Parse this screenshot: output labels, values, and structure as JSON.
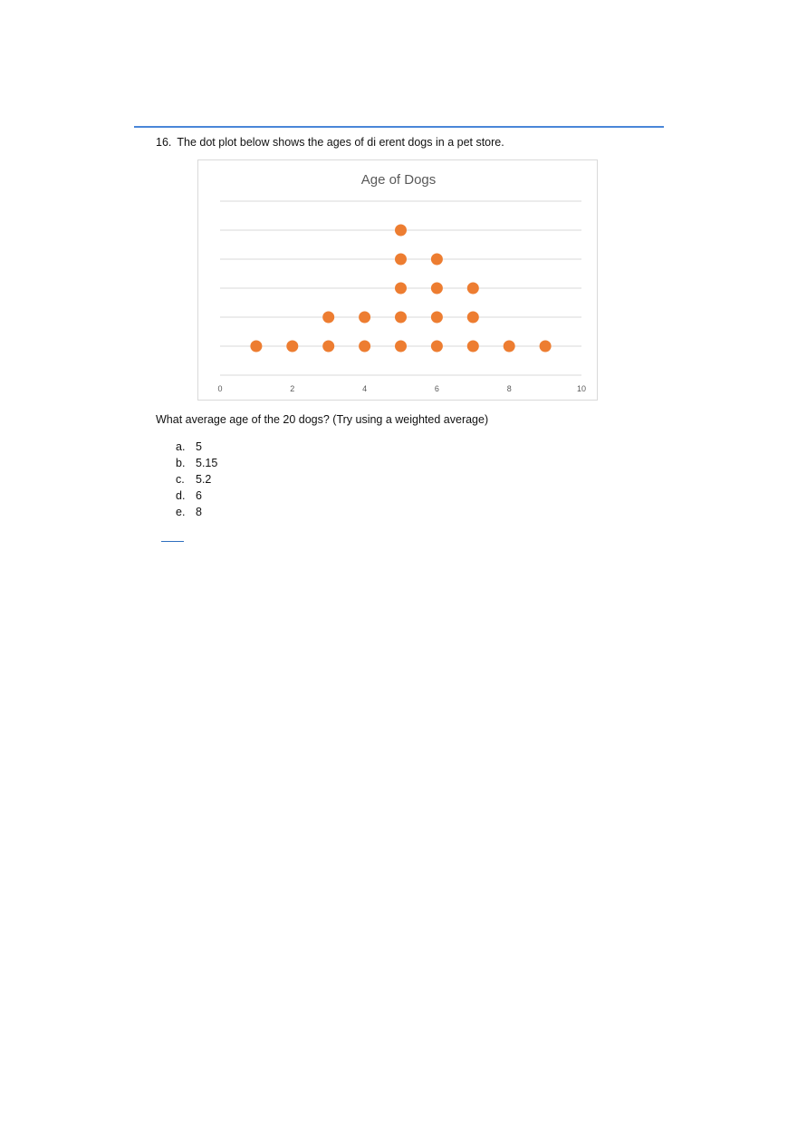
{
  "question": {
    "number": "16.",
    "text": "The dot plot below shows the ages of di erent dogs in a pet store."
  },
  "prompt": "What average age of the 20 dogs? (Try using a weighted average)",
  "choices": [
    {
      "letter": "a.",
      "value": "5"
    },
    {
      "letter": "b.",
      "value": "5.15"
    },
    {
      "letter": "c.",
      "value": "5.2"
    },
    {
      "letter": "d.",
      "value": "6"
    },
    {
      "letter": "e.",
      "value": "8"
    }
  ],
  "chart_data": {
    "type": "scatter",
    "title": "Age of Dogs",
    "xlabel": "",
    "ylabel": "",
    "xlim": [
      0,
      10
    ],
    "x_ticks": [
      "0",
      "2",
      "4",
      "6",
      "8",
      "10"
    ],
    "counts": [
      {
        "age": 1,
        "count": 1
      },
      {
        "age": 2,
        "count": 1
      },
      {
        "age": 3,
        "count": 2
      },
      {
        "age": 4,
        "count": 2
      },
      {
        "age": 5,
        "count": 5
      },
      {
        "age": 6,
        "count": 4
      },
      {
        "age": 7,
        "count": 3
      },
      {
        "age": 8,
        "count": 1
      },
      {
        "age": 9,
        "count": 1
      }
    ],
    "grid": true,
    "colors": {
      "dot": "#ed7d31",
      "grid": "#d9d9d9",
      "title": "#595959",
      "tick": "#595959"
    }
  }
}
